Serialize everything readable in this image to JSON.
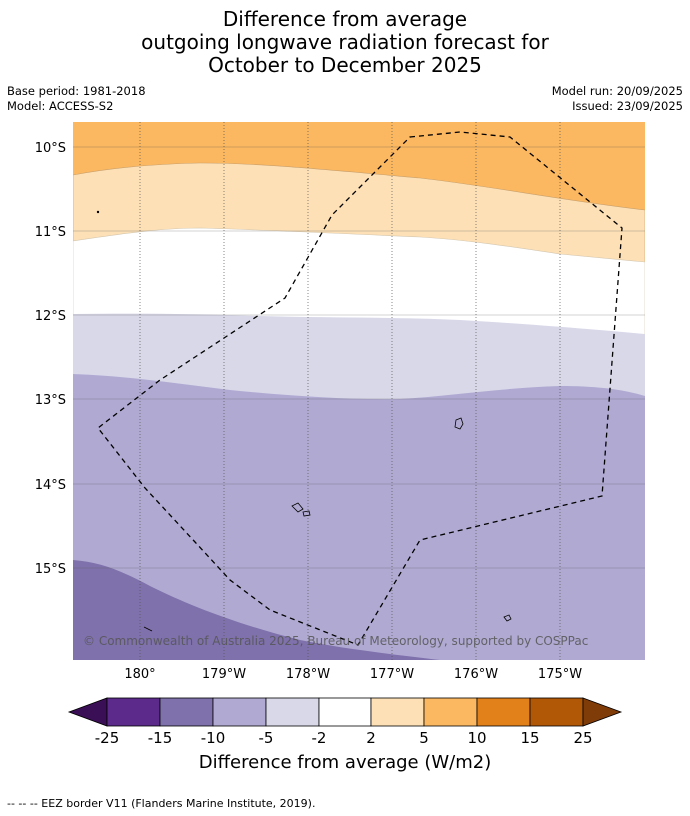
{
  "title": {
    "line1": "Difference from average",
    "line2": "outgoing longwave radiation forecast for",
    "line3": "October to December 2025"
  },
  "meta": {
    "base_period": "Base period: 1981-2018",
    "model": "Model: ACCESS-S2",
    "model_run": "Model run: 20/09/2025",
    "issued": "Issued: 23/09/2025"
  },
  "map": {
    "lat_labels": [
      "10°S",
      "11°S",
      "12°S",
      "13°S",
      "14°S",
      "15°S"
    ],
    "lon_labels": [
      "180°",
      "179°W",
      "178°W",
      "177°W",
      "176°W",
      "175°W"
    ],
    "copyright": "© Commonwealth of Australia 2025, Bureau of Meteorology, supported by COSPPac"
  },
  "colorbar": {
    "ticks": [
      "-25",
      "-15",
      "-10",
      "-5",
      "-2",
      "2",
      "5",
      "10",
      "15",
      "25"
    ],
    "colors": {
      "extend_low": "#3b0f56",
      "b1": "#5b2a8a",
      "b2": "#7f71ab",
      "b3": "#b0aad2",
      "b4": "#d8d8e9",
      "b5": "#ffffff",
      "b6": "#fde0b6",
      "b7": "#fcb761",
      "b8": "#e2801a",
      "b9": "#b15807",
      "extend_high": "#7f3b08"
    },
    "label": "Difference from average (W/m2)"
  },
  "footer": "--  --  -- EEZ border V11 (Flanders Marine Institute, 2019)."
}
